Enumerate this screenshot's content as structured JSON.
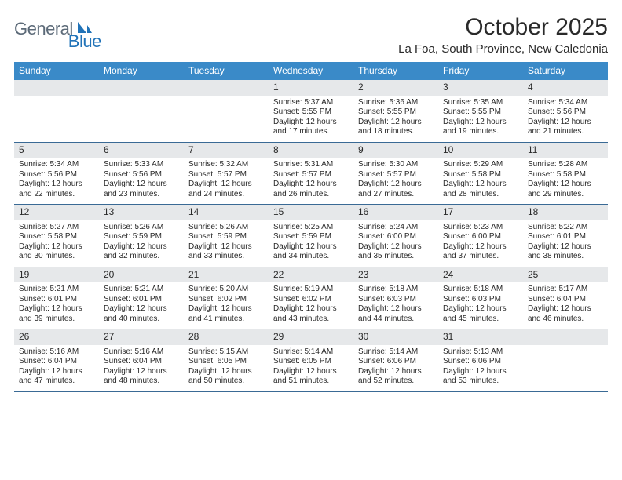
{
  "logo": {
    "text1": "General",
    "text2": "Blue"
  },
  "title": "October 2025",
  "location": "La Foa, South Province, New Caledonia",
  "colors": {
    "header_bg": "#3a8ac8",
    "header_text": "#ffffff",
    "daynum_bg": "#e6e8ea",
    "week_border": "#3a6a95",
    "body_text": "#2a2a2a",
    "logo_gray": "#5c6a78",
    "logo_blue": "#2173b8"
  },
  "weekdays": [
    "Sunday",
    "Monday",
    "Tuesday",
    "Wednesday",
    "Thursday",
    "Friday",
    "Saturday"
  ],
  "first_weekday_index": 3,
  "days": [
    {
      "n": 1,
      "sunrise": "5:37 AM",
      "sunset": "5:55 PM",
      "daylight": "12 hours and 17 minutes."
    },
    {
      "n": 2,
      "sunrise": "5:36 AM",
      "sunset": "5:55 PM",
      "daylight": "12 hours and 18 minutes."
    },
    {
      "n": 3,
      "sunrise": "5:35 AM",
      "sunset": "5:55 PM",
      "daylight": "12 hours and 19 minutes."
    },
    {
      "n": 4,
      "sunrise": "5:34 AM",
      "sunset": "5:56 PM",
      "daylight": "12 hours and 21 minutes."
    },
    {
      "n": 5,
      "sunrise": "5:34 AM",
      "sunset": "5:56 PM",
      "daylight": "12 hours and 22 minutes."
    },
    {
      "n": 6,
      "sunrise": "5:33 AM",
      "sunset": "5:56 PM",
      "daylight": "12 hours and 23 minutes."
    },
    {
      "n": 7,
      "sunrise": "5:32 AM",
      "sunset": "5:57 PM",
      "daylight": "12 hours and 24 minutes."
    },
    {
      "n": 8,
      "sunrise": "5:31 AM",
      "sunset": "5:57 PM",
      "daylight": "12 hours and 26 minutes."
    },
    {
      "n": 9,
      "sunrise": "5:30 AM",
      "sunset": "5:57 PM",
      "daylight": "12 hours and 27 minutes."
    },
    {
      "n": 10,
      "sunrise": "5:29 AM",
      "sunset": "5:58 PM",
      "daylight": "12 hours and 28 minutes."
    },
    {
      "n": 11,
      "sunrise": "5:28 AM",
      "sunset": "5:58 PM",
      "daylight": "12 hours and 29 minutes."
    },
    {
      "n": 12,
      "sunrise": "5:27 AM",
      "sunset": "5:58 PM",
      "daylight": "12 hours and 30 minutes."
    },
    {
      "n": 13,
      "sunrise": "5:26 AM",
      "sunset": "5:59 PM",
      "daylight": "12 hours and 32 minutes."
    },
    {
      "n": 14,
      "sunrise": "5:26 AM",
      "sunset": "5:59 PM",
      "daylight": "12 hours and 33 minutes."
    },
    {
      "n": 15,
      "sunrise": "5:25 AM",
      "sunset": "5:59 PM",
      "daylight": "12 hours and 34 minutes."
    },
    {
      "n": 16,
      "sunrise": "5:24 AM",
      "sunset": "6:00 PM",
      "daylight": "12 hours and 35 minutes."
    },
    {
      "n": 17,
      "sunrise": "5:23 AM",
      "sunset": "6:00 PM",
      "daylight": "12 hours and 37 minutes."
    },
    {
      "n": 18,
      "sunrise": "5:22 AM",
      "sunset": "6:01 PM",
      "daylight": "12 hours and 38 minutes."
    },
    {
      "n": 19,
      "sunrise": "5:21 AM",
      "sunset": "6:01 PM",
      "daylight": "12 hours and 39 minutes."
    },
    {
      "n": 20,
      "sunrise": "5:21 AM",
      "sunset": "6:01 PM",
      "daylight": "12 hours and 40 minutes."
    },
    {
      "n": 21,
      "sunrise": "5:20 AM",
      "sunset": "6:02 PM",
      "daylight": "12 hours and 41 minutes."
    },
    {
      "n": 22,
      "sunrise": "5:19 AM",
      "sunset": "6:02 PM",
      "daylight": "12 hours and 43 minutes."
    },
    {
      "n": 23,
      "sunrise": "5:18 AM",
      "sunset": "6:03 PM",
      "daylight": "12 hours and 44 minutes."
    },
    {
      "n": 24,
      "sunrise": "5:18 AM",
      "sunset": "6:03 PM",
      "daylight": "12 hours and 45 minutes."
    },
    {
      "n": 25,
      "sunrise": "5:17 AM",
      "sunset": "6:04 PM",
      "daylight": "12 hours and 46 minutes."
    },
    {
      "n": 26,
      "sunrise": "5:16 AM",
      "sunset": "6:04 PM",
      "daylight": "12 hours and 47 minutes."
    },
    {
      "n": 27,
      "sunrise": "5:16 AM",
      "sunset": "6:04 PM",
      "daylight": "12 hours and 48 minutes."
    },
    {
      "n": 28,
      "sunrise": "5:15 AM",
      "sunset": "6:05 PM",
      "daylight": "12 hours and 50 minutes."
    },
    {
      "n": 29,
      "sunrise": "5:14 AM",
      "sunset": "6:05 PM",
      "daylight": "12 hours and 51 minutes."
    },
    {
      "n": 30,
      "sunrise": "5:14 AM",
      "sunset": "6:06 PM",
      "daylight": "12 hours and 52 minutes."
    },
    {
      "n": 31,
      "sunrise": "5:13 AM",
      "sunset": "6:06 PM",
      "daylight": "12 hours and 53 minutes."
    }
  ],
  "labels": {
    "sunrise_prefix": "Sunrise: ",
    "sunset_prefix": "Sunset: ",
    "daylight_prefix": "Daylight: "
  }
}
